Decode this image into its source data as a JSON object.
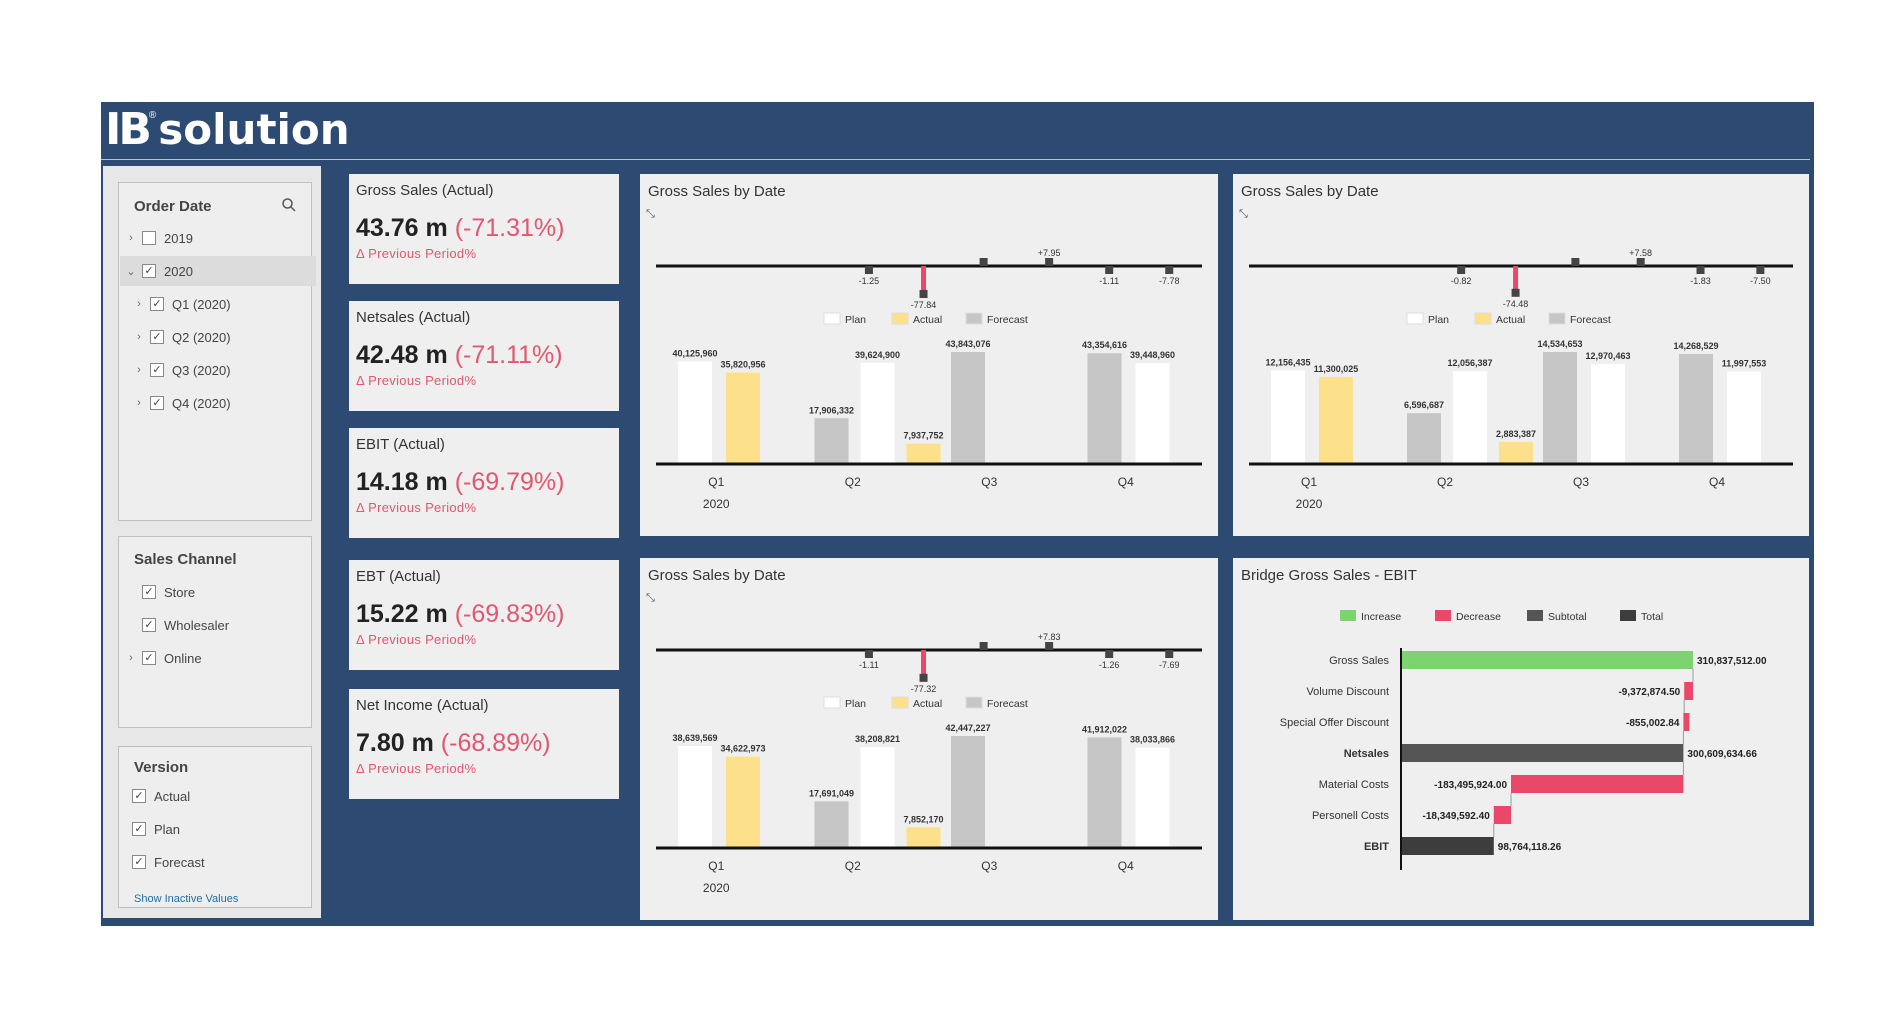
{
  "brand": {
    "logo_ib": "IB",
    "logo_text": "solution",
    "registered": "®"
  },
  "filters": {
    "order_date": {
      "title": "Order Date",
      "items": [
        {
          "label": "2019",
          "checked": false,
          "expanded": false
        },
        {
          "label": "2020",
          "checked": true,
          "expanded": true
        },
        {
          "label": "Q1 (2020)",
          "checked": true,
          "expanded": false
        },
        {
          "label": "Q2 (2020)",
          "checked": true,
          "expanded": false
        },
        {
          "label": "Q3 (2020)",
          "checked": true,
          "expanded": false
        },
        {
          "label": "Q4 (2020)",
          "checked": true,
          "expanded": false
        }
      ]
    },
    "sales_channel": {
      "title": "Sales Channel",
      "items": [
        {
          "label": "Store",
          "checked": true
        },
        {
          "label": "Wholesaler",
          "checked": true
        },
        {
          "label": "Online",
          "checked": true
        }
      ]
    },
    "version": {
      "title": "Version",
      "items": [
        {
          "label": "Actual",
          "checked": true
        },
        {
          "label": "Plan",
          "checked": true
        },
        {
          "label": "Forecast",
          "checked": true
        }
      ],
      "show_inactive": "Show Inactive Values"
    }
  },
  "kpis": [
    {
      "title": "Gross Sales (Actual)",
      "value": "43.76 m",
      "pct": "(-71.31%)",
      "sub": "Δ Previous Period%"
    },
    {
      "title": "Netsales (Actual)",
      "value": "42.48 m",
      "pct": "(-71.11%)",
      "sub": "Δ Previous Period%"
    },
    {
      "title": "EBIT (Actual)",
      "value": "14.18 m",
      "pct": "(-69.79%)",
      "sub": "Δ Previous Period%"
    },
    {
      "title": "EBT (Actual)",
      "value": "15.22 m",
      "pct": "(-69.83%)",
      "sub": "Δ Previous Period%"
    },
    {
      "title": "Net Income (Actual)",
      "value": "7.80 m",
      "pct": "(-68.89%)",
      "sub": "Δ Previous Period%"
    }
  ],
  "colors": {
    "frame": "#2c4a72",
    "plan": "#ffffff",
    "actual": "#fde08a",
    "forecast": "#c6c6c6",
    "increase": "#7dd36f",
    "decrease": "#ea4868",
    "subtotal": "#555555",
    "total": "#3d3d3d",
    "negative_pct": "#e0576f"
  },
  "chart_data": [
    {
      "type": "bar",
      "title": "Gross Sales by Date",
      "categories": [
        "Q1",
        "Q2",
        "Q3",
        "Q4"
      ],
      "year_label": "2020",
      "legend": [
        "Plan",
        "Actual",
        "Forecast"
      ],
      "series": [
        {
          "name": "Plan",
          "values": [
            40125960,
            39624900,
            null,
            39448960
          ],
          "labels": [
            "40,125,960",
            "39,624,900",
            "",
            "39,448,960"
          ]
        },
        {
          "name": "Actual",
          "values": [
            35820956,
            7937752,
            null,
            null
          ],
          "labels": [
            "35,820,956",
            "7,937,752",
            "",
            ""
          ]
        },
        {
          "name": "Forecast",
          "values": [
            null,
            17906332,
            43843076,
            43354616
          ],
          "labels": [
            "",
            "17,906,332",
            "43,843,076",
            "43,354,616"
          ]
        }
      ],
      "deviation_pct": [
        {
          "value": -1.25,
          "label": "-1.25"
        },
        {
          "value": -77.84,
          "label": "-77.84"
        },
        {
          "value": 10.0,
          "label": ""
        },
        {
          "value": 7.95,
          "label": "+7.95"
        },
        {
          "value": -1.11,
          "label": "-1.11"
        },
        {
          "value": -7.78,
          "label": "-7.78"
        }
      ]
    },
    {
      "type": "bar",
      "title": "Gross Sales by Date",
      "categories": [
        "Q1",
        "Q2",
        "Q3",
        "Q4"
      ],
      "year_label": "2020",
      "legend": [
        "Plan",
        "Actual",
        "Forecast"
      ],
      "series": [
        {
          "name": "Plan",
          "values": [
            12156435,
            12056387,
            12970463,
            11997553
          ],
          "labels": [
            "12,156,435",
            "12,056,387",
            "12,970,463",
            "11,997,553"
          ]
        },
        {
          "name": "Actual",
          "values": [
            11300025,
            2883387,
            null,
            null
          ],
          "labels": [
            "11,300,025",
            "2,883,387",
            "",
            ""
          ]
        },
        {
          "name": "Forecast",
          "values": [
            null,
            6596687,
            14534653,
            14268529
          ],
          "labels": [
            "",
            "6,596,687",
            "14,534,653",
            "14,268,529"
          ]
        }
      ],
      "deviation_pct": [
        {
          "value": -0.82,
          "label": "-0.82"
        },
        {
          "value": -74.48,
          "label": "-74.48"
        },
        {
          "value": 10.0,
          "label": ""
        },
        {
          "value": 7.58,
          "label": "+7.58"
        },
        {
          "value": -1.83,
          "label": "-1.83"
        },
        {
          "value": -7.5,
          "label": "-7.50"
        }
      ]
    },
    {
      "type": "bar",
      "title": "Gross Sales by Date",
      "categories": [
        "Q1",
        "Q2",
        "Q3",
        "Q4"
      ],
      "year_label": "2020",
      "legend": [
        "Plan",
        "Actual",
        "Forecast"
      ],
      "series": [
        {
          "name": "Plan",
          "values": [
            38639569,
            38208821,
            null,
            38033866
          ],
          "labels": [
            "38,639,569",
            "38,208,821",
            "",
            "38,033,866"
          ]
        },
        {
          "name": "Actual",
          "values": [
            34622973,
            7852170,
            null,
            null
          ],
          "labels": [
            "34,622,973",
            "7,852,170",
            "",
            ""
          ]
        },
        {
          "name": "Forecast",
          "values": [
            null,
            17691049,
            42447227,
            41912022
          ],
          "labels": [
            "",
            "17,691,049",
            "42,447,227",
            "41,912,022"
          ]
        }
      ],
      "deviation_pct": [
        {
          "value": -1.11,
          "label": "-1.11"
        },
        {
          "value": -77.32,
          "label": "-77.32"
        },
        {
          "value": 10.0,
          "label": ""
        },
        {
          "value": 7.83,
          "label": "+7.83"
        },
        {
          "value": -1.26,
          "label": "-1.26"
        },
        {
          "value": -7.69,
          "label": "-7.69"
        }
      ]
    },
    {
      "type": "bar",
      "title": "Bridge Gross Sales - EBIT",
      "legend": [
        "Increase",
        "Decrease",
        "Subtotal",
        "Total"
      ],
      "rows": [
        {
          "label": "Gross Sales",
          "value": 310837512.0,
          "display": "310,837,512.00",
          "kind": "increase",
          "bold": false
        },
        {
          "label": "Volume Discount",
          "value": -9372874.5,
          "display": "-9,372,874.50",
          "kind": "decrease",
          "bold": false
        },
        {
          "label": "Special Offer Discount",
          "value": -855002.84,
          "display": "-855,002.84",
          "kind": "decrease",
          "bold": false
        },
        {
          "label": "Netsales",
          "value": 300609634.66,
          "display": "300,609,634.66",
          "kind": "subtotal",
          "bold": true
        },
        {
          "label": "Material Costs",
          "value": -183495924.0,
          "display": "-183,495,924.00",
          "kind": "decrease",
          "bold": false
        },
        {
          "label": "Personell Costs",
          "value": -18349592.4,
          "display": "-18,349,592.40",
          "kind": "decrease",
          "bold": false
        },
        {
          "label": "EBIT",
          "value": 98764118.26,
          "display": "98,764,118.26",
          "kind": "total",
          "bold": true
        }
      ]
    }
  ]
}
